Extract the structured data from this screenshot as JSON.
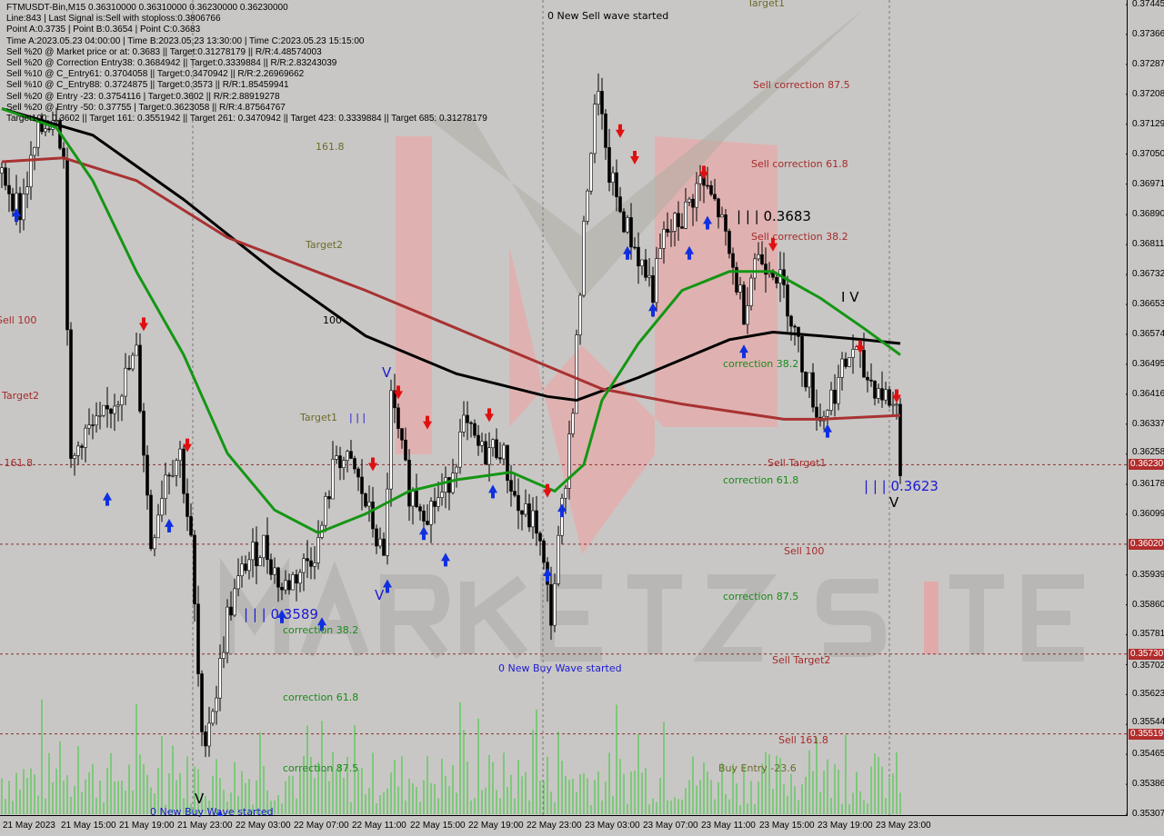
{
  "header": {
    "symbol_line": "FTMUSDT-Bin,M15  0.36310000 0.36310000 0.36230000 0.36230000",
    "lines": [
      "Line:843 | Last Signal is:Sell with stoploss:0.3806766",
      "Point A:0.3735 | Point B:0.3654 | Point C:0.3683",
      "Time A:2023.05.23 04:00:00 | Time B:2023.05.23 13:30:00 | Time C:2023.05.23 15:15:00",
      "Sell %20 @ Market price or at: 0.3683 || Target:0.31278179 || R/R:4.48574003",
      "Sell %20 @ Correction Entry38: 0.3684942 || Target:0.3339884 || R/R:2.83243039",
      "Sell %10 @ C_Entry61: 0.3704058 || Target:0.3470942 || R/R:2.26969662",
      "Sell %10 @ C_Entry88: 0.3724875 || Target:0.3573 || R/R:1.85459941",
      "Sell %20 @ Entry -23: 0.3754116 | Target:0.3602 || R/R:2.88919278",
      "Sell %20 @ Entry -50: 0.37755 | Target:0.3623058 || R/R:4.87564767",
      "Target100: 0.3602 || Target 161: 0.3551942 || Target 261: 0.3470942 || Target 423: 0.3339884 || Target 685: 0.31278179"
    ]
  },
  "labels": {
    "sell_wave": "0 New Sell wave started",
    "target1_top": "Target1",
    "sell_corr_875": "Sell correction 87.5",
    "sell_corr_618": "Sell correction 61.8",
    "point_c": "| | | 0.3683",
    "sell_corr_382": "Sell correction 38.2",
    "l1618": "161.8",
    "target2_mid": "Target2",
    "l100": "100",
    "sell100_left": "Sell 100",
    "target2_left": "Target2",
    "l1618_left": "l 161.8",
    "target1_mid": "Target1",
    "wave_iii": "| | |",
    "corr382_r": "correction 38.2",
    "wave_iv": "I V",
    "sell_target1": "Sell Target1",
    "corr618_r": "correction 61.8",
    "wave_iii_r": "| | | 0.3623",
    "wave_v_r": "V",
    "sell100": "Sell 100",
    "corr875_r": "correction 87.5",
    "wave_iii_l": "| | | 0.3589",
    "corr382_l": "correction 38.2",
    "sell_target2": "Sell Target2",
    "buy_wave_mid": "0 New Buy Wave started",
    "corr618_l": "correction 61.8",
    "sell1618": "Sell 161.8",
    "corr875_l": "correction 87.5",
    "buy_entry": "Buy Entry -23.6",
    "buy_wave_bottom": "0 New Buy Wave started",
    "wave_v1": "V",
    "wave_v2": "V",
    "wave_v3": "V"
  },
  "watermark": "MARKETZ SITE",
  "chart_data": {
    "type": "candlestick",
    "symbol": "FTMUSDT-Bin",
    "timeframe": "M15",
    "ylim": [
      0.35307,
      0.37445
    ],
    "y_ticks": [
      "0.37445",
      "0.37366",
      "0.37287",
      "0.37208",
      "0.37129",
      "0.37050",
      "0.36971",
      "0.36890",
      "0.36811",
      "0.36732",
      "0.36653",
      "0.36574",
      "0.36495",
      "0.36416",
      "0.36337",
      "0.36258",
      "0.36178",
      "0.36099",
      "0.35939",
      "0.35860",
      "0.35781",
      "0.35702",
      "0.35623",
      "0.35544",
      "0.35465",
      "0.35386",
      "0.35307"
    ],
    "x_ticks": [
      "21 May 2023",
      "21 May 15:00",
      "21 May 19:00",
      "21 May 23:00",
      "22 May 03:00",
      "22 May 07:00",
      "22 May 11:00",
      "22 May 15:00",
      "22 May 19:00",
      "22 May 23:00",
      "23 May 03:00",
      "23 May 07:00",
      "23 May 11:00",
      "23 May 15:00",
      "23 May 19:00",
      "23 May 23:00"
    ],
    "bars_per_tick": 16,
    "price_levels": [
      {
        "price": "0.36230",
        "color": "#b22c2c"
      },
      {
        "price": "0.36020",
        "color": "#b22c2c"
      },
      {
        "price": "0.35730",
        "color": "#b22c2c"
      },
      {
        "price": "0.35519",
        "color": "#b22c2c"
      }
    ],
    "close_path": [
      [
        1,
        0.3698
      ],
      [
        5,
        0.369
      ],
      [
        10,
        0.371
      ],
      [
        15,
        0.3717
      ],
      [
        17,
        0.3703
      ],
      [
        19,
        0.3621
      ],
      [
        22,
        0.3631
      ],
      [
        27,
        0.3633
      ],
      [
        32,
        0.3642
      ],
      [
        37,
        0.3652
      ],
      [
        41,
        0.3602
      ],
      [
        45,
        0.3621
      ],
      [
        49,
        0.3626
      ],
      [
        52,
        0.3602
      ],
      [
        55,
        0.3549
      ],
      [
        59,
        0.3563
      ],
      [
        62,
        0.3583
      ],
      [
        67,
        0.3597
      ],
      [
        72,
        0.3602
      ],
      [
        77,
        0.359
      ],
      [
        82,
        0.3595
      ],
      [
        87,
        0.3602
      ],
      [
        92,
        0.3626
      ],
      [
        97,
        0.3621
      ],
      [
        102,
        0.3607
      ],
      [
        105,
        0.3597
      ],
      [
        107,
        0.364
      ],
      [
        112,
        0.3616
      ],
      [
        117,
        0.3611
      ],
      [
        122,
        0.3616
      ],
      [
        127,
        0.3633
      ],
      [
        132,
        0.3626
      ],
      [
        137,
        0.3628
      ],
      [
        142,
        0.3611
      ],
      [
        147,
        0.3607
      ],
      [
        151,
        0.3583
      ],
      [
        154,
        0.3611
      ],
      [
        157,
        0.364
      ],
      [
        161,
        0.3698
      ],
      [
        164,
        0.3724
      ],
      [
        166,
        0.3703
      ],
      [
        170,
        0.369
      ],
      [
        175,
        0.3678
      ],
      [
        179,
        0.3669
      ],
      [
        182,
        0.3683
      ],
      [
        187,
        0.3688
      ],
      [
        192,
        0.3698
      ],
      [
        197,
        0.369
      ],
      [
        200,
        0.3678
      ],
      [
        204,
        0.3664
      ],
      [
        207,
        0.3678
      ],
      [
        212,
        0.3676
      ],
      [
        216,
        0.3666
      ],
      [
        220,
        0.365
      ],
      [
        225,
        0.3635
      ],
      [
        230,
        0.3645
      ],
      [
        234,
        0.3654
      ],
      [
        237,
        0.3647
      ],
      [
        242,
        0.3642
      ],
      [
        246,
        0.3638
      ],
      [
        247,
        0.3623
      ]
    ],
    "series": [
      {
        "name": "100",
        "color": "#000000",
        "points": [
          [
            0,
            0.3717
          ],
          [
            25,
            0.371
          ],
          [
            50,
            0.3693
          ],
          [
            75,
            0.3674
          ],
          [
            100,
            0.3657
          ],
          [
            125,
            0.3647
          ],
          [
            150,
            0.3641
          ],
          [
            158,
            0.364
          ],
          [
            175,
            0.3646
          ],
          [
            200,
            0.3656
          ],
          [
            212,
            0.3658
          ],
          [
            225,
            0.3657
          ],
          [
            237,
            0.3656
          ],
          [
            247,
            0.3655
          ]
        ]
      },
      {
        "color": "#a83232",
        "points": [
          [
            0,
            0.3703
          ],
          [
            17,
            0.3704
          ],
          [
            37,
            0.3698
          ],
          [
            62,
            0.3683
          ],
          [
            100,
            0.3669
          ],
          [
            125,
            0.3659
          ],
          [
            150,
            0.3649
          ],
          [
            165,
            0.3643
          ],
          [
            187,
            0.3639
          ],
          [
            215,
            0.3635
          ],
          [
            225,
            0.3635
          ],
          [
            247,
            0.3636
          ]
        ]
      },
      {
        "color": "#149614",
        "points": [
          [
            0,
            0.3717
          ],
          [
            15,
            0.3712
          ],
          [
            25,
            0.3698
          ],
          [
            37,
            0.3674
          ],
          [
            50,
            0.3652
          ],
          [
            62,
            0.3626
          ],
          [
            75,
            0.3611
          ],
          [
            87,
            0.3605
          ],
          [
            100,
            0.361
          ],
          [
            112,
            0.3616
          ],
          [
            125,
            0.3619
          ],
          [
            140,
            0.3621
          ],
          [
            152,
            0.3616
          ],
          [
            160,
            0.3623
          ],
          [
            165,
            0.364
          ],
          [
            175,
            0.3655
          ],
          [
            187,
            0.3669
          ],
          [
            200,
            0.3674
          ],
          [
            212,
            0.3674
          ],
          [
            225,
            0.3667
          ],
          [
            237,
            0.3659
          ],
          [
            247,
            0.3652
          ]
        ]
      }
    ],
    "signals": [
      {
        "bar": 39,
        "price": 0.3659,
        "dir": "sell"
      },
      {
        "bar": 51,
        "price": 0.3627,
        "dir": "sell"
      },
      {
        "bar": 102,
        "price": 0.3622,
        "dir": "sell"
      },
      {
        "bar": 109,
        "price": 0.3641,
        "dir": "sell"
      },
      {
        "bar": 117,
        "price": 0.3633,
        "dir": "sell"
      },
      {
        "bar": 134,
        "price": 0.3635,
        "dir": "sell"
      },
      {
        "bar": 150,
        "price": 0.3615,
        "dir": "sell"
      },
      {
        "bar": 170,
        "price": 0.371,
        "dir": "sell"
      },
      {
        "bar": 174,
        "price": 0.3703,
        "dir": "sell"
      },
      {
        "bar": 193,
        "price": 0.3699,
        "dir": "sell"
      },
      {
        "bar": 212,
        "price": 0.368,
        "dir": "sell"
      },
      {
        "bar": 236,
        "price": 0.3653,
        "dir": "sell"
      },
      {
        "bar": 246,
        "price": 0.364,
        "dir": "sell"
      },
      {
        "bar": 4,
        "price": 0.369,
        "dir": "buy"
      },
      {
        "bar": 29,
        "price": 0.3615,
        "dir": "buy"
      },
      {
        "bar": 46,
        "price": 0.3608,
        "dir": "buy"
      },
      {
        "bar": 77,
        "price": 0.3584,
        "dir": "buy"
      },
      {
        "bar": 88,
        "price": 0.3582,
        "dir": "buy"
      },
      {
        "bar": 106,
        "price": 0.3592,
        "dir": "buy"
      },
      {
        "bar": 116,
        "price": 0.3606,
        "dir": "buy"
      },
      {
        "bar": 122,
        "price": 0.3599,
        "dir": "buy"
      },
      {
        "bar": 135,
        "price": 0.3617,
        "dir": "buy"
      },
      {
        "bar": 150,
        "price": 0.3595,
        "dir": "buy"
      },
      {
        "bar": 154,
        "price": 0.3612,
        "dir": "buy"
      },
      {
        "bar": 172,
        "price": 0.368,
        "dir": "buy"
      },
      {
        "bar": 179,
        "price": 0.3665,
        "dir": "buy"
      },
      {
        "bar": 189,
        "price": 0.368,
        "dir": "buy"
      },
      {
        "bar": 194,
        "price": 0.3688,
        "dir": "buy"
      },
      {
        "bar": 204,
        "price": 0.3654,
        "dir": "buy"
      },
      {
        "bar": 227,
        "price": 0.3633,
        "dir": "buy"
      },
      {
        "bar": 60,
        "price": 0.3531,
        "dir": "buy"
      }
    ]
  }
}
